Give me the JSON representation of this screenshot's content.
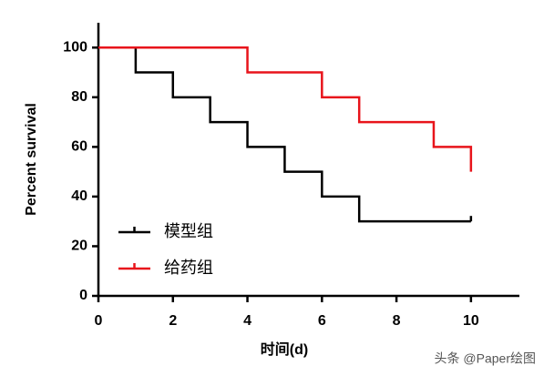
{
  "chart_data": {
    "type": "step",
    "x_label": "时间(d)",
    "y_label": "Percent survival",
    "series": [
      {
        "name": "模型组",
        "color": "#000000",
        "x": [
          0,
          1,
          2,
          3,
          4,
          5,
          6,
          7,
          10
        ],
        "values": [
          100,
          90,
          80,
          70,
          60,
          50,
          40,
          30,
          30
        ]
      },
      {
        "name": "给药组",
        "color": "#e8141b",
        "x": [
          0,
          4,
          6,
          7,
          9,
          10
        ],
        "values": [
          100,
          90,
          80,
          70,
          60,
          50
        ]
      }
    ],
    "xlim": [
      0,
      11.3
    ],
    "xticks": [
      0,
      2,
      4,
      6,
      8,
      10
    ],
    "ylim": [
      0,
      110
    ],
    "yticks": [
      0,
      20,
      40,
      60,
      80,
      100
    ],
    "legend": "lower-left",
    "watermark": "头条 @Paper绘图"
  }
}
